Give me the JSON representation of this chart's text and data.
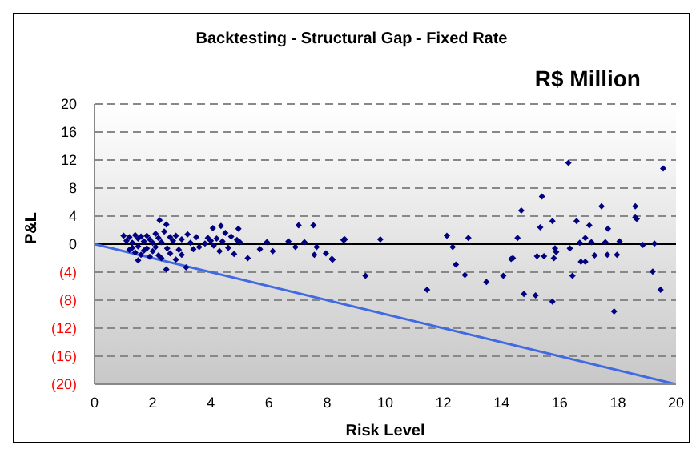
{
  "chart_data": {
    "type": "scatter",
    "title": "Backtesting - Structural Gap - Fixed Rate",
    "annotations": [
      "R$ Million"
    ],
    "xlabel": "Risk Level",
    "ylabel": "P&L",
    "xlim": [
      0,
      20
    ],
    "xticks": [
      0,
      2,
      4,
      6,
      8,
      10,
      12,
      14,
      16,
      18,
      20
    ],
    "ylim": [
      -20,
      20
    ],
    "yticks": [
      {
        "value": -20,
        "label": "(20)"
      },
      {
        "value": -16,
        "label": "(16)"
      },
      {
        "value": -12,
        "label": "(12)"
      },
      {
        "value": -8,
        "label": "(8)"
      },
      {
        "value": -4,
        "label": "(4)"
      },
      0,
      4,
      8,
      12,
      16,
      20
    ],
    "grid": "y",
    "legend": false,
    "ref_lines": [
      {
        "axis": "y",
        "value": 0,
        "color": "#000000"
      }
    ],
    "series": [
      {
        "color": "#000080",
        "marker": "diamond",
        "x": [
          1.0,
          1.1,
          1.2,
          1.2,
          1.3,
          1.3,
          1.4,
          1.4,
          1.5,
          1.5,
          1.5,
          1.6,
          1.6,
          1.7,
          1.7,
          1.8,
          1.8,
          1.9,
          1.9,
          2.0,
          2.0,
          2.1,
          2.1,
          2.2,
          2.2,
          2.24,
          2.3,
          2.3,
          2.4,
          2.47,
          2.47,
          2.5,
          2.6,
          2.6,
          2.7,
          2.8,
          2.8,
          2.9,
          3.0,
          3.0,
          3.15,
          3.2,
          3.3,
          3.4,
          3.5,
          3.6,
          3.8,
          3.9,
          4.0,
          4.07,
          4.1,
          4.2,
          4.3,
          4.35,
          4.4,
          4.5,
          4.6,
          4.7,
          4.8,
          4.9,
          4.95,
          5.0,
          5.27,
          5.69,
          5.93,
          6.13,
          6.67,
          6.91,
          7.02,
          7.22,
          7.53,
          7.56,
          7.64,
          7.96,
          8.16,
          8.19,
          8.56,
          8.61,
          9.32,
          9.83,
          11.44,
          12.12,
          12.32,
          12.43,
          12.74,
          12.86,
          13.48,
          14.06,
          14.33,
          14.39,
          14.55,
          14.68,
          14.77,
          15.17,
          15.22,
          15.33,
          15.39,
          15.46,
          15.75,
          15.75,
          15.8,
          15.84,
          15.88,
          16.3,
          16.35,
          16.44,
          16.58,
          16.69,
          16.73,
          16.88,
          16.88,
          17.02,
          17.09,
          17.2,
          17.44,
          17.57,
          17.64,
          17.66,
          17.87,
          17.97,
          18.06,
          18.6,
          18.6,
          18.65,
          18.86,
          19.2,
          19.26,
          19.47,
          19.56
        ],
        "values": [
          1.2,
          0.5,
          -0.8,
          1.0,
          0.2,
          -0.5,
          1.3,
          -1.2,
          0.8,
          -0.3,
          -2.3,
          1.1,
          -1.5,
          0.4,
          -0.9,
          1.2,
          -0.6,
          0.7,
          -1.8,
          0.2,
          -1.0,
          1.5,
          -0.4,
          0.9,
          -1.6,
          3.4,
          0.3,
          -2.0,
          1.8,
          2.8,
          -3.6,
          -0.6,
          1.0,
          -1.3,
          0.5,
          -2.2,
          1.2,
          -0.8,
          0.7,
          -1.5,
          -3.3,
          1.4,
          0.2,
          -0.7,
          1.0,
          -0.4,
          0.1,
          0.9,
          0.5,
          2.3,
          -0.2,
          0.8,
          -1.0,
          2.6,
          0.4,
          1.6,
          -0.5,
          1.1,
          -1.4,
          0.6,
          2.2,
          0.3,
          -2.0,
          -0.7,
          0.3,
          -1.0,
          0.4,
          -0.4,
          2.7,
          0.3,
          2.7,
          -1.5,
          -0.4,
          -1.3,
          -2.1,
          -2.2,
          0.6,
          0.7,
          -4.5,
          0.7,
          -6.5,
          1.2,
          -0.4,
          -2.9,
          -4.4,
          0.9,
          -5.4,
          -4.5,
          -2.1,
          -2.0,
          0.9,
          4.8,
          -7.1,
          -7.3,
          -1.7,
          2.4,
          6.8,
          -1.7,
          3.3,
          -8.2,
          -2.0,
          -0.6,
          -1.1,
          11.6,
          -0.6,
          -4.5,
          3.3,
          0.2,
          -2.5,
          0.9,
          -2.5,
          2.7,
          0.3,
          -1.6,
          5.4,
          0.3,
          -1.5,
          2.2,
          -9.6,
          -1.5,
          0.4,
          5.4,
          3.8,
          3.6,
          -0.1,
          -3.9,
          0.1,
          -6.5,
          10.8
        ]
      },
      {
        "type": "line",
        "color": "#4169e1",
        "x": [
          0,
          20
        ],
        "values": [
          0,
          -20
        ]
      }
    ]
  }
}
